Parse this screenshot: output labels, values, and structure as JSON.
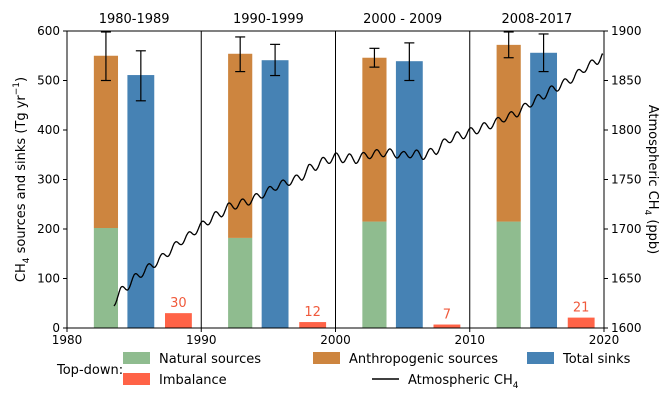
{
  "chart_data": {
    "type": "bar",
    "panels": [
      {
        "title": "1980-1989",
        "natural": 202,
        "anthropogenic_top": 550,
        "anthro_err": [
          500,
          598
        ],
        "sinks": 511,
        "sinks_err": [
          459,
          560
        ],
        "imbalance": 30,
        "imbalance_label": "30"
      },
      {
        "title": "1990-1999",
        "natural": 182,
        "anthropogenic_top": 554,
        "anthro_err": [
          518,
          588
        ],
        "sinks": 541,
        "sinks_err": [
          510,
          573
        ],
        "imbalance": 12,
        "imbalance_label": "12"
      },
      {
        "title": "2000 - 2009",
        "natural": 215,
        "anthropogenic_top": 546,
        "anthro_err": [
          527,
          565
        ],
        "sinks": 539,
        "sinks_err": [
          500,
          576
        ],
        "imbalance": 7,
        "imbalance_label": "7"
      },
      {
        "title": "2008-2017",
        "natural": 215,
        "anthropogenic_top": 572,
        "anthro_err": [
          546,
          598
        ],
        "sinks": 556,
        "sinks_err": [
          518,
          594
        ],
        "imbalance": 21,
        "imbalance_label": "21"
      }
    ],
    "panel_x_ranges": [
      [
        1980,
        1990
      ],
      [
        1990,
        2000
      ],
      [
        2000,
        2010
      ],
      [
        2010,
        2020
      ]
    ],
    "bar_x_offsets": {
      "natural": [
        2.0,
        3.8
      ],
      "sinks": [
        4.5,
        6.5
      ],
      "imbalance": [
        7.3,
        9.3
      ]
    },
    "atmospheric_ch4": {
      "name": "Atmospheric CH",
      "name_sub": "4",
      "x": [
        1983.5,
        1984,
        1984.5,
        1985,
        1985.5,
        1986,
        1986.5,
        1987,
        1987.5,
        1988,
        1988.5,
        1989,
        1989.5,
        1990,
        1990.5,
        1991,
        1991.5,
        1992,
        1992.5,
        1993,
        1993.5,
        1994,
        1994.5,
        1995,
        1995.5,
        1996,
        1996.5,
        1997,
        1997.5,
        1998,
        1998.5,
        1999,
        1999.5,
        2000,
        2000.5,
        2001,
        2001.5,
        2002,
        2002.5,
        2003,
        2003.5,
        2004,
        2004.5,
        2005,
        2005.5,
        2006,
        2006.5,
        2007,
        2007.5,
        2008,
        2008.5,
        2009,
        2009.5,
        2010,
        2010.5,
        2011,
        2011.5,
        2012,
        2012.5,
        2013,
        2013.5,
        2014,
        2014.5,
        2015,
        2015.5,
        2016,
        2016.5,
        2017,
        2017.5,
        2018,
        2018.5,
        2019,
        2019.5,
        2019.9
      ],
      "y": [
        1626,
        1637,
        1642,
        1650,
        1655,
        1660,
        1665,
        1670,
        1676,
        1682,
        1688,
        1692,
        1698,
        1703,
        1708,
        1713,
        1716,
        1722,
        1724,
        1726,
        1728,
        1731,
        1735,
        1738,
        1743,
        1745,
        1748,
        1750,
        1753,
        1761,
        1763,
        1768,
        1770,
        1773,
        1771,
        1772,
        1770,
        1773,
        1775,
        1776,
        1777,
        1777,
        1776,
        1774,
        1776,
        1776,
        1774,
        1777,
        1779,
        1786,
        1791,
        1794,
        1795,
        1798,
        1800,
        1803,
        1805,
        1808,
        1812,
        1814,
        1817,
        1822,
        1827,
        1831,
        1835,
        1840,
        1843,
        1847,
        1851,
        1856,
        1862,
        1866,
        1870,
        1876
      ]
    },
    "xlim": [
      1980,
      2020
    ],
    "ylim_left": [
      0,
      600
    ],
    "ylim_right": [
      1600,
      1900
    ],
    "x_ticks": [
      "1980",
      "1990",
      "2000",
      "2010",
      "2020"
    ],
    "y_ticks_left": [
      "0",
      "100",
      "200",
      "300",
      "400",
      "500",
      "600"
    ],
    "y_ticks_right": [
      "1600",
      "1650",
      "1700",
      "1750",
      "1800",
      "1850",
      "1900"
    ],
    "ylabel_left": {
      "pre": "CH",
      "sub": "4",
      "mid": " sources and sinks (Tg yr",
      "sup": "−1",
      "post": ")"
    },
    "ylabel_right": {
      "pre": "Atmospheric CH",
      "sub": "4",
      "post": " (ppb)"
    },
    "legend": {
      "title": "Top-down:",
      "items": [
        {
          "label": "Natural sources",
          "color": "#8fbc8f",
          "kind": "patch"
        },
        {
          "label": "Anthropogenic sources",
          "color": "#cd853f",
          "kind": "patch"
        },
        {
          "label": "Total sinks",
          "color": "#4682b4",
          "kind": "patch"
        },
        {
          "label": "Imbalance",
          "color": "#ff6347",
          "kind": "patch"
        },
        {
          "label": "Atmospheric CH",
          "sub": "4",
          "color": "#000000",
          "kind": "line"
        }
      ]
    },
    "colors": {
      "natural": "#8fbc8f",
      "anthropogenic": "#cd853f",
      "sinks": "#4682b4",
      "imbalance": "#ff6347",
      "imbalance_text": "#f05a3c",
      "line": "#000000"
    }
  }
}
